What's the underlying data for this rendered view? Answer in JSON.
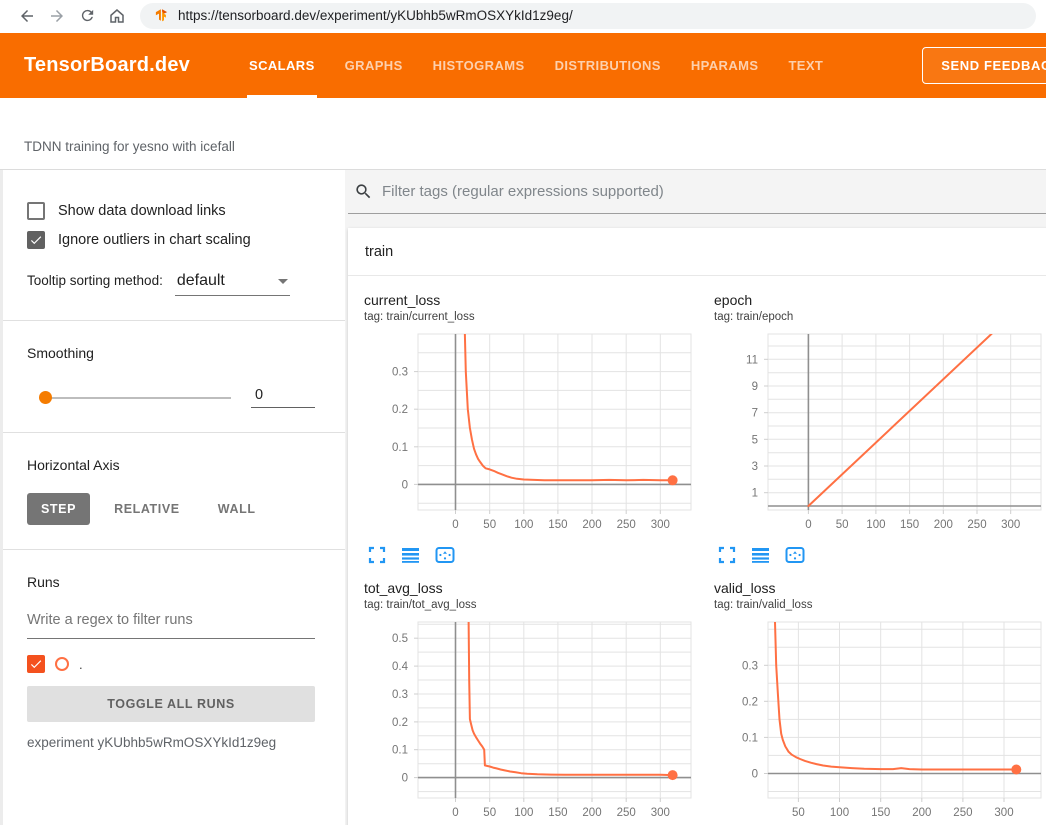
{
  "browser": {
    "url": "https://tensorboard.dev/experiment/yKUbhb5wRmOSXYkId1z9eg/"
  },
  "header": {
    "brand": "TensorBoard.dev",
    "tabs": [
      {
        "label": "SCALARS",
        "active": true
      },
      {
        "label": "GRAPHS",
        "active": false
      },
      {
        "label": "HISTOGRAMS",
        "active": false
      },
      {
        "label": "DISTRIBUTIONS",
        "active": false
      },
      {
        "label": "HPARAMS",
        "active": false
      },
      {
        "label": "TEXT",
        "active": false
      }
    ],
    "feedback_label": "SEND FEEDBACK"
  },
  "experiment_title": "TDNN training for yesno with icefall",
  "sidebar": {
    "checkboxes": [
      {
        "label": "Show data download links",
        "checked": false
      },
      {
        "label": "Ignore outliers in chart scaling",
        "checked": true
      }
    ],
    "tooltip_sorting": {
      "label": "Tooltip sorting method:",
      "value": "default"
    },
    "smoothing": {
      "label": "Smoothing",
      "value": "0"
    },
    "horizontal_axis": {
      "label": "Horizontal Axis",
      "options": [
        "STEP",
        "RELATIVE",
        "WALL"
      ],
      "selected": "STEP"
    },
    "runs": {
      "label": "Runs",
      "filter_placeholder": "Write a regex to filter runs",
      "run_items": [
        {
          "name": ".",
          "checked": true,
          "color": "#ff7043"
        }
      ],
      "toggle_all_label": "TOGGLE ALL RUNS",
      "experiment_caption": "experiment yKUbhb5wRmOSXYkId1z9eg"
    }
  },
  "main": {
    "filter_placeholder": "Filter tags (regular expressions supported)",
    "section_label": "train",
    "accent_color": "#f96d00",
    "icon_color": "#2196f3"
  },
  "chart_data": [
    {
      "type": "line",
      "title": "current_loss",
      "tag": "tag: train/current_loss",
      "xlim": [
        -55,
        345
      ],
      "ylim": [
        -0.068,
        0.4
      ],
      "xticks": [
        0,
        50,
        100,
        150,
        200,
        250,
        300
      ],
      "yticks": [
        0,
        0.1,
        0.2,
        0.3
      ],
      "ygrid_step": 0.05,
      "color": "#ff7043",
      "end_dot": true,
      "series": [
        {
          "name": ".",
          "points": [
            [
              13,
              0.45
            ],
            [
              15,
              0.3
            ],
            [
              18,
              0.2
            ],
            [
              21,
              0.15
            ],
            [
              24,
              0.12
            ],
            [
              27,
              0.095
            ],
            [
              30,
              0.08
            ],
            [
              33,
              0.068
            ],
            [
              36,
              0.06
            ],
            [
              40,
              0.05
            ],
            [
              44,
              0.043
            ],
            [
              50,
              0.04
            ],
            [
              56,
              0.036
            ],
            [
              62,
              0.031
            ],
            [
              68,
              0.027
            ],
            [
              75,
              0.022
            ],
            [
              82,
              0.018
            ],
            [
              90,
              0.015
            ],
            [
              100,
              0.013
            ],
            [
              115,
              0.012
            ],
            [
              130,
              0.011
            ],
            [
              150,
              0.011
            ],
            [
              175,
              0.011
            ],
            [
              200,
              0.011
            ],
            [
              225,
              0.012
            ],
            [
              250,
              0.011
            ],
            [
              275,
              0.012
            ],
            [
              300,
              0.011
            ],
            [
              318,
              0.011
            ]
          ]
        }
      ]
    },
    {
      "type": "line",
      "title": "epoch",
      "tag": "tag: train/epoch",
      "xlim": [
        -60,
        345
      ],
      "ylim": [
        -0.3,
        12.9
      ],
      "xticks": [
        0,
        50,
        100,
        150,
        200,
        250,
        300
      ],
      "yticks": [
        1,
        3,
        5,
        7,
        9,
        11
      ],
      "ygrid_step": 1,
      "color": "#ff7043",
      "end_dot": false,
      "series": [
        {
          "name": ".",
          "points": [
            [
              0,
              0
            ],
            [
              320,
              15.2
            ]
          ]
        }
      ]
    },
    {
      "type": "line",
      "title": "tot_avg_loss",
      "tag": "tag: train/tot_avg_loss",
      "xlim": [
        -55,
        345
      ],
      "ylim": [
        -0.073,
        0.558
      ],
      "xticks": [
        0,
        50,
        100,
        150,
        200,
        250,
        300
      ],
      "yticks": [
        0,
        0.1,
        0.2,
        0.3,
        0.4,
        0.5
      ],
      "ygrid_step": 0.05,
      "color": "#ff7043",
      "end_dot": true,
      "series": [
        {
          "name": ".",
          "points": [
            [
              19,
              0.6
            ],
            [
              20,
              0.35
            ],
            [
              21,
              0.21
            ],
            [
              23,
              0.19
            ],
            [
              25,
              0.17
            ],
            [
              27,
              0.158
            ],
            [
              30,
              0.145
            ],
            [
              33,
              0.133
            ],
            [
              36,
              0.122
            ],
            [
              39,
              0.112
            ],
            [
              42,
              0.1
            ],
            [
              43,
              0.044
            ],
            [
              46,
              0.042
            ],
            [
              50,
              0.04
            ],
            [
              55,
              0.036
            ],
            [
              60,
              0.033
            ],
            [
              66,
              0.029
            ],
            [
              72,
              0.026
            ],
            [
              80,
              0.022
            ],
            [
              88,
              0.019
            ],
            [
              96,
              0.016
            ],
            [
              105,
              0.014
            ],
            [
              120,
              0.012
            ],
            [
              140,
              0.011
            ],
            [
              160,
              0.01
            ],
            [
              200,
              0.01
            ],
            [
              250,
              0.01
            ],
            [
              300,
              0.01
            ],
            [
              318,
              0.009
            ]
          ]
        }
      ]
    },
    {
      "type": "line",
      "title": "valid_loss",
      "tag": "tag: train/valid_loss",
      "xlim": [
        13,
        345
      ],
      "ylim": [
        -0.068,
        0.42
      ],
      "xticks": [
        50,
        100,
        150,
        200,
        250,
        300
      ],
      "yticks": [
        0,
        0.1,
        0.2,
        0.3
      ],
      "ygrid_step": 0.05,
      "color": "#ff7043",
      "end_dot": true,
      "series": [
        {
          "name": ".",
          "points": [
            [
              21,
              0.46
            ],
            [
              23,
              0.3
            ],
            [
              25,
              0.22
            ],
            [
              27,
              0.15
            ],
            [
              29,
              0.11
            ],
            [
              31,
              0.093
            ],
            [
              34,
              0.075
            ],
            [
              38,
              0.06
            ],
            [
              42,
              0.052
            ],
            [
              47,
              0.045
            ],
            [
              52,
              0.04
            ],
            [
              58,
              0.035
            ],
            [
              65,
              0.03
            ],
            [
              72,
              0.026
            ],
            [
              80,
              0.022
            ],
            [
              90,
              0.019
            ],
            [
              100,
              0.017
            ],
            [
              115,
              0.015
            ],
            [
              130,
              0.013
            ],
            [
              150,
              0.012
            ],
            [
              165,
              0.012
            ],
            [
              175,
              0.015
            ],
            [
              185,
              0.012
            ],
            [
              200,
              0.011
            ],
            [
              225,
              0.011
            ],
            [
              250,
              0.011
            ],
            [
              275,
              0.011
            ],
            [
              300,
              0.011
            ],
            [
              315,
              0.011
            ]
          ]
        }
      ]
    }
  ]
}
